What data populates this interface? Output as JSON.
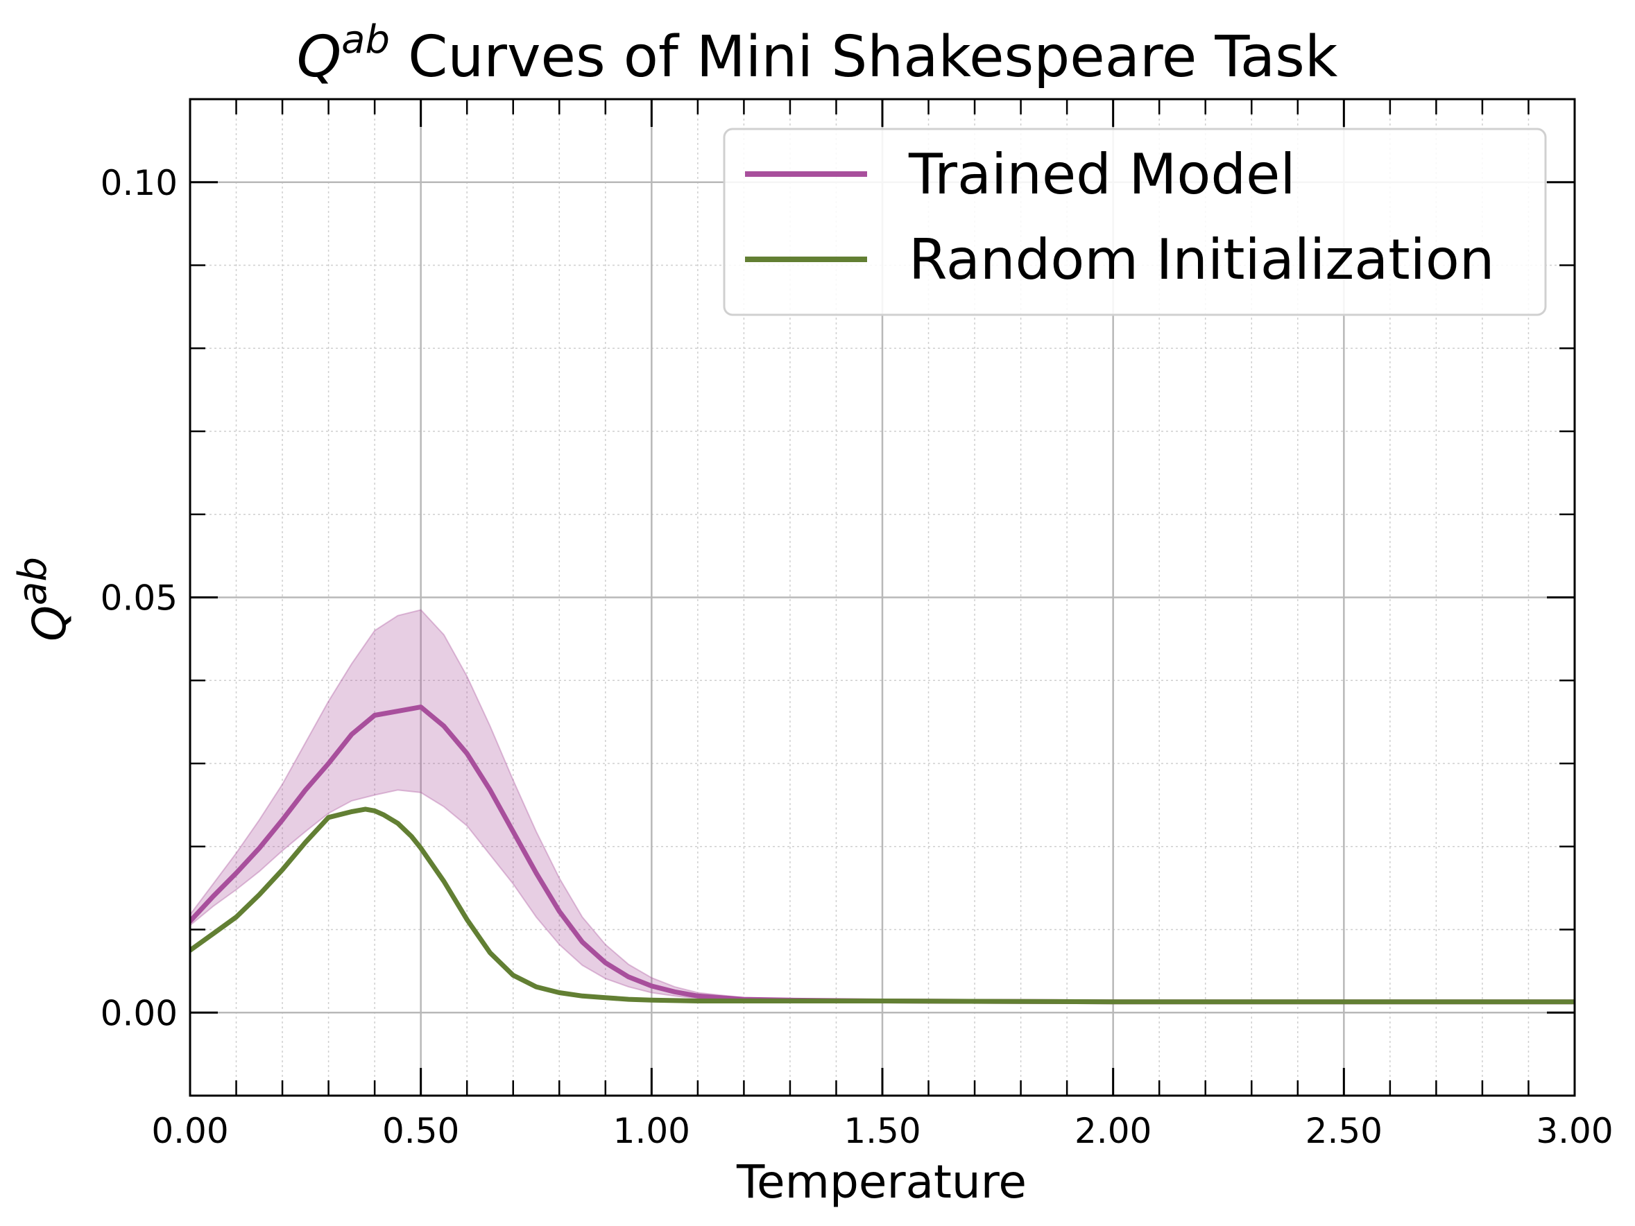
{
  "chart_data": {
    "type": "line",
    "title_prefix": "Q",
    "title_sup": "ab",
    "title_main": " Curves of Mini Shakespeare Task",
    "xlabel": "Temperature",
    "ylabel_base": "Q",
    "ylabel_sup": "ab",
    "xlim": [
      0,
      3
    ],
    "ylim": [
      -0.01,
      0.11
    ],
    "xticks": [
      "0.00",
      "0.50",
      "1.00",
      "1.50",
      "2.00",
      "2.50",
      "3.00"
    ],
    "xtick_values": [
      0,
      0.5,
      1,
      1.5,
      2,
      2.5,
      3
    ],
    "yticks": [
      "0.00",
      "0.05",
      "0.10"
    ],
    "ytick_values": [
      0,
      0.05,
      0.1
    ],
    "grid": "major and minor",
    "legend_position": "top-right",
    "series": [
      {
        "name": "Trained Model",
        "color": "#a84f9c",
        "x": [
          0,
          0.05,
          0.1,
          0.15,
          0.2,
          0.25,
          0.3,
          0.35,
          0.4,
          0.45,
          0.5,
          0.55,
          0.6,
          0.65,
          0.7,
          0.75,
          0.8,
          0.85,
          0.9,
          0.95,
          1.0,
          1.05,
          1.1,
          1.2,
          1.3,
          1.5,
          2.0,
          2.5,
          3.0
        ],
        "y": [
          0.011,
          0.014,
          0.0168,
          0.0198,
          0.0232,
          0.0268,
          0.03,
          0.0335,
          0.0358,
          0.0363,
          0.0368,
          0.0345,
          0.0312,
          0.0268,
          0.0218,
          0.0168,
          0.0122,
          0.0085,
          0.006,
          0.0043,
          0.0032,
          0.0025,
          0.002,
          0.0016,
          0.0015,
          0.0014,
          0.0013,
          0.0013,
          0.0013
        ],
        "band_lower": [
          0.0105,
          0.0128,
          0.0148,
          0.017,
          0.0195,
          0.0218,
          0.024,
          0.0255,
          0.0262,
          0.0268,
          0.0265,
          0.0248,
          0.0225,
          0.019,
          0.0155,
          0.0115,
          0.0082,
          0.0057,
          0.0041,
          0.0031,
          0.0024,
          0.002,
          0.0017,
          0.0015,
          0.0014,
          0.0014,
          0.0013,
          0.0013,
          0.0013
        ],
        "band_upper": [
          0.0118,
          0.0155,
          0.0192,
          0.0232,
          0.0275,
          0.0325,
          0.0375,
          0.042,
          0.046,
          0.0478,
          0.0485,
          0.0455,
          0.0405,
          0.0345,
          0.028,
          0.0218,
          0.0162,
          0.0115,
          0.0082,
          0.0058,
          0.0042,
          0.0031,
          0.0024,
          0.0018,
          0.0016,
          0.0014,
          0.0013,
          0.0013,
          0.0013
        ]
      },
      {
        "name": "Random Initialization",
        "color": "#627f33",
        "x": [
          0,
          0.05,
          0.1,
          0.15,
          0.2,
          0.25,
          0.3,
          0.35,
          0.38,
          0.4,
          0.42,
          0.45,
          0.48,
          0.5,
          0.55,
          0.6,
          0.65,
          0.7,
          0.75,
          0.8,
          0.85,
          0.9,
          0.95,
          1.0,
          1.1,
          1.2,
          1.5,
          2.0,
          2.5,
          3.0
        ],
        "y": [
          0.0075,
          0.0095,
          0.0115,
          0.0142,
          0.0172,
          0.0205,
          0.0235,
          0.0242,
          0.0245,
          0.0243,
          0.0238,
          0.0228,
          0.0212,
          0.0198,
          0.0158,
          0.0112,
          0.0072,
          0.0045,
          0.0031,
          0.0024,
          0.002,
          0.0018,
          0.0016,
          0.0015,
          0.0014,
          0.0014,
          0.0014,
          0.0013,
          0.0013,
          0.0013
        ]
      }
    ]
  }
}
